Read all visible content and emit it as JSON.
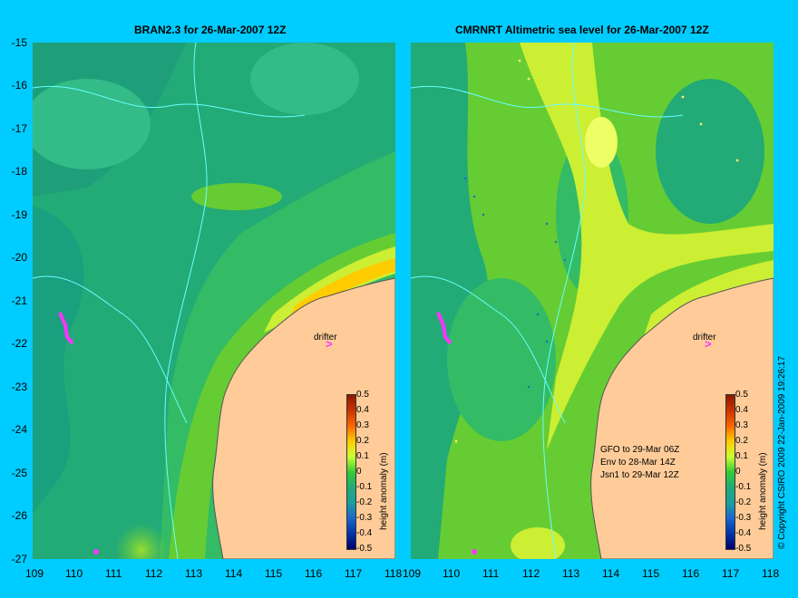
{
  "panels": [
    {
      "title": "BRAN2.3 for 26-Mar-2007 12Z"
    },
    {
      "title": "CMRNRT Altimetric sea level  for 26-Mar-2007 12Z"
    }
  ],
  "axes": {
    "y_labels": [
      "-15",
      "-16",
      "-17",
      "-18",
      "-19",
      "-20",
      "-21",
      "-22",
      "-23",
      "-24",
      "-25",
      "-26",
      "-27"
    ],
    "x_labels": [
      "109",
      "110",
      "111",
      "112",
      "113",
      "114",
      "115",
      "116",
      "117",
      "118"
    ]
  },
  "colorbar": {
    "ticks": [
      "0.5",
      "0.4",
      "0.3",
      "0.2",
      "0.1",
      "0",
      "-0.1",
      "-0.2",
      "-0.3",
      "-0.4",
      "-0.5"
    ],
    "label": "height anomaly (m)"
  },
  "annotations": {
    "drifter": "drifter",
    "legend": [
      "GFO to 29-Mar 06Z",
      "Env to 28-Mar 14Z",
      "Jsn1 to 29-Mar 12Z"
    ],
    "copyright": "© Copyright CSIRO 2009   22-Jan-2009 19:26:17"
  },
  "colors": {
    "background": "#00ccff",
    "land": "#ffcc99",
    "ocean_low": "#1aa87a",
    "ocean_mid": "#33cc33",
    "ocean_high": "#ccff33",
    "peak": "#ffcc00",
    "drifter": "#ff33ff",
    "coast": "#66ffff"
  }
}
